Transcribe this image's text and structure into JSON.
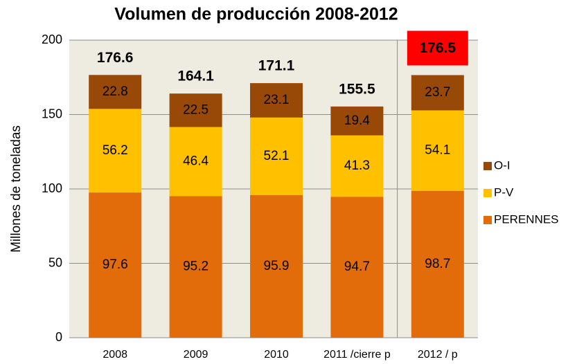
{
  "chart_data": {
    "type": "stacked_bar",
    "title": "Volumen de producción 2008-2012",
    "y_label": "Millones de toneladas",
    "categories": [
      "2008",
      "2009",
      "2010",
      "2011 /cierre p",
      "2012 / p"
    ],
    "series": [
      {
        "name": "PERENNES",
        "color": "#e36c0a",
        "values": [
          97.6,
          95.2,
          95.9,
          94.7,
          98.7
        ]
      },
      {
        "name": "P-V",
        "color": "#ffc000",
        "values": [
          56.2,
          46.4,
          52.1,
          41.3,
          54.1
        ]
      },
      {
        "name": "O-I",
        "color": "#984807",
        "values": [
          22.8,
          22.5,
          23.1,
          19.4,
          23.7
        ]
      }
    ],
    "totals": [
      176.6,
      164.1,
      171.1,
      155.5,
      176.5
    ],
    "ylim": [
      0,
      200
    ],
    "yticks": [
      0,
      50,
      100,
      150,
      200
    ],
    "grid": true,
    "legend": "right"
  }
}
